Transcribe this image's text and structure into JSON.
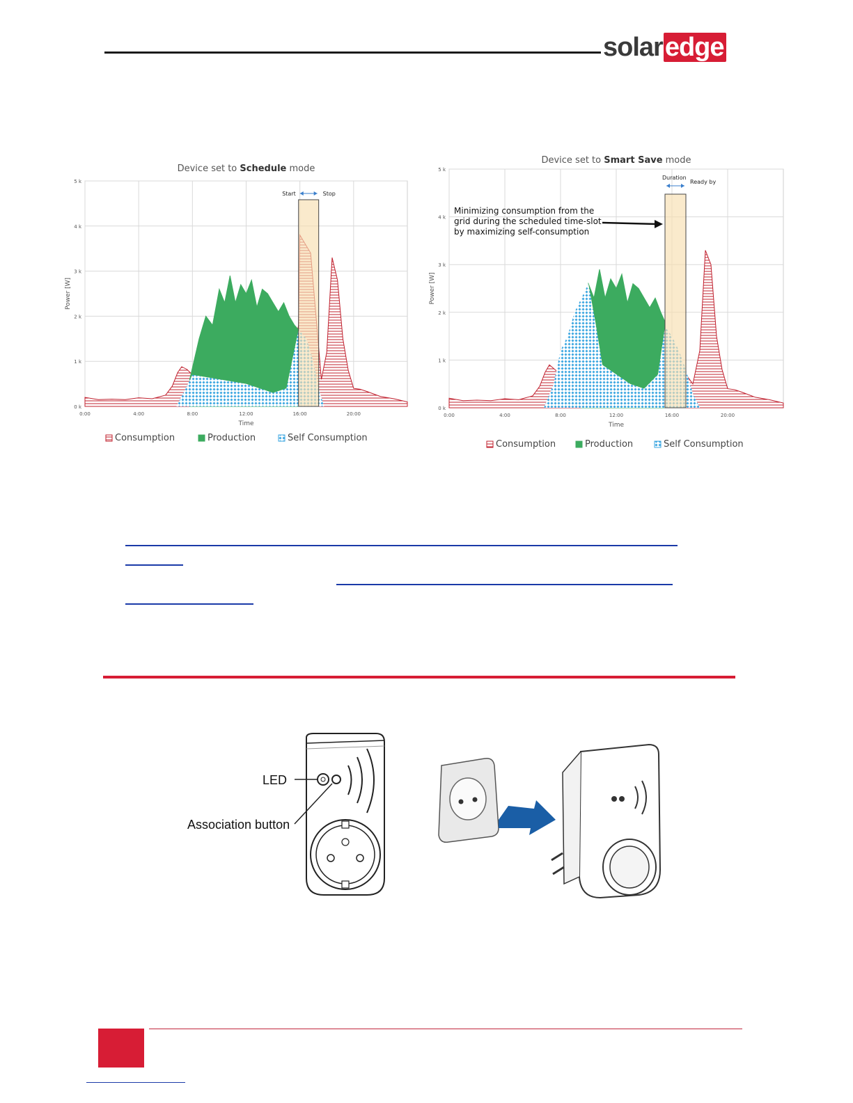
{
  "header": {
    "logo_solar": "solar",
    "logo_edge": "edge"
  },
  "colors": {
    "brand_red": "#d71d35",
    "consumption": "#c0202e",
    "production": "#3cab5f",
    "self_consumption": "#3aa6e0",
    "highlight": "#f7deb0"
  },
  "chart_data": [
    {
      "type": "area",
      "title": "Device  set to Schedule mode",
      "title_prefix": "Device  set to ",
      "title_bold": "Schedule",
      "title_suffix": " mode",
      "xlabel": "Time",
      "ylabel": "Power [W]",
      "xlim": [
        0,
        24
      ],
      "ylim": [
        0,
        5000
      ],
      "y_ticks": [
        "0 k",
        "1 k",
        "2 k",
        "3 k",
        "4 k",
        "5 k"
      ],
      "x_ticks": [
        "0:00",
        "4:00",
        "8:00",
        "12:00",
        "16:00",
        "20:00"
      ],
      "grid": true,
      "legend_position": "bottom",
      "legend": [
        "Consumption",
        "Production",
        "Self Consumption"
      ],
      "annotations": [
        "Start",
        "Stop"
      ],
      "highlight_window": [
        15.9,
        17.4
      ],
      "series": [
        {
          "name": "Consumption",
          "x": [
            0,
            1,
            2,
            3,
            4,
            5,
            6,
            6.5,
            6.9,
            7.2,
            7.6,
            8,
            10,
            12,
            14,
            15.2,
            15.9,
            16,
            16.4,
            16.8,
            17.2,
            17.6,
            18,
            18.4,
            18.8,
            19.2,
            19.6,
            20,
            20.5,
            21,
            22,
            23,
            24
          ],
          "values": [
            200,
            150,
            160,
            150,
            190,
            170,
            250,
            450,
            750,
            880,
            820,
            700,
            500,
            420,
            420,
            700,
            1800,
            3800,
            3600,
            3400,
            2000,
            600,
            1200,
            3300,
            2800,
            1500,
            800,
            400,
            380,
            330,
            220,
            170,
            100
          ]
        },
        {
          "name": "Production",
          "x": [
            7.8,
            8.5,
            9,
            9.5,
            10,
            10.4,
            10.8,
            11.2,
            11.6,
            12,
            12.4,
            12.8,
            13.2,
            13.6,
            14,
            14.4,
            14.8,
            15.2,
            15.6,
            15.9
          ],
          "values": [
            600,
            1500,
            2000,
            1800,
            2600,
            2300,
            2900,
            2300,
            2700,
            2500,
            2800,
            2200,
            2600,
            2500,
            2300,
            2100,
            2300,
            2000,
            1800,
            1700
          ]
        },
        {
          "name": "Self Consumption",
          "x": [
            6.8,
            7.5,
            8,
            9,
            10,
            11,
            12,
            13,
            14,
            15,
            15.9,
            16.5,
            17,
            17.4,
            17.8
          ],
          "values": [
            0,
            400,
            700,
            650,
            600,
            550,
            500,
            400,
            300,
            400,
            1700,
            1500,
            1000,
            400,
            0
          ]
        }
      ]
    },
    {
      "type": "area",
      "title": "Device set to Smart Save mode",
      "title_prefix": "Device set to ",
      "title_bold": "Smart Save",
      "title_suffix": " mode",
      "xlabel": "Time",
      "ylabel": "Power [W]",
      "xlim": [
        0,
        24
      ],
      "ylim": [
        0,
        5000
      ],
      "y_ticks": [
        "0 k",
        "1 k",
        "2 k",
        "3 k",
        "4 k",
        "5 k"
      ],
      "x_ticks": [
        "0:00",
        "4:00",
        "8:00",
        "12:00",
        "16:00",
        "20:00"
      ],
      "grid": true,
      "legend_position": "bottom",
      "legend": [
        "Consumption",
        "Production",
        "Self Consumption"
      ],
      "annotations": [
        "Duration",
        "Ready by",
        "Minimizing consumption from the",
        "grid during the scheduled time-slot",
        "by maximizing self-consumption"
      ],
      "highlight_window": [
        15.5,
        17
      ],
      "series": [
        {
          "name": "Consumption",
          "x": [
            0,
            1,
            2,
            3,
            4,
            5,
            6,
            6.5,
            6.9,
            7.2,
            7.6,
            8,
            10,
            12,
            14,
            15,
            15.5,
            16,
            16.5,
            17,
            17.5,
            18,
            18.4,
            18.8,
            19.2,
            19.6,
            20,
            20.5,
            21,
            22,
            23,
            24
          ],
          "values": [
            200,
            150,
            160,
            150,
            190,
            170,
            250,
            450,
            750,
            900,
            800,
            700,
            500,
            420,
            420,
            450,
            600,
            900,
            1000,
            700,
            500,
            1200,
            3300,
            3000,
            1500,
            800,
            400,
            380,
            330,
            220,
            170,
            100
          ]
        },
        {
          "name": "Production",
          "x": [
            9.5,
            10,
            10.4,
            10.8,
            11.2,
            11.6,
            12,
            12.4,
            12.8,
            13.2,
            13.6,
            14,
            14.4,
            14.8,
            15.2,
            15.5
          ],
          "values": [
            1800,
            2600,
            2300,
            2900,
            2300,
            2700,
            2500,
            2800,
            2200,
            2600,
            2500,
            2300,
            2100,
            2300,
            2000,
            1800
          ]
        },
        {
          "name": "Self Consumption",
          "x": [
            6.8,
            7.5,
            8,
            8.5,
            9,
            9.5,
            10,
            10.5,
            11,
            12,
            13,
            14,
            15,
            15.5,
            16,
            16.5,
            17,
            17.5,
            18
          ],
          "values": [
            0,
            500,
            1200,
            1500,
            2000,
            2300,
            2600,
            1800,
            900,
            700,
            500,
            400,
            700,
            1700,
            1500,
            1200,
            800,
            300,
            0
          ]
        }
      ]
    }
  ],
  "figure2": {
    "label_led": "LED",
    "label_association": "Association button"
  }
}
